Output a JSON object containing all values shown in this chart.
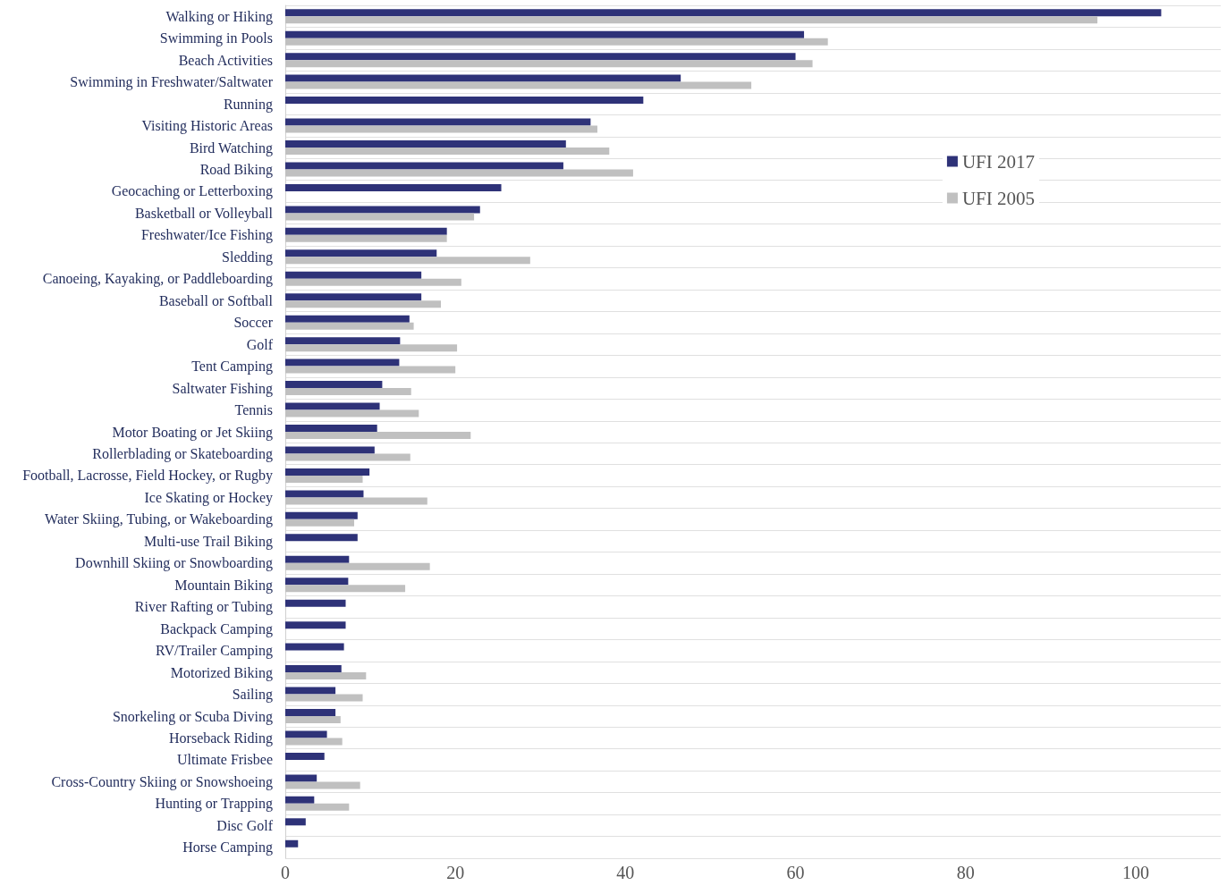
{
  "chart_data": {
    "type": "bar",
    "orientation": "horizontal",
    "categories": [
      "Walking or Hiking",
      "Swimming in Pools",
      "Beach Activities",
      "Swimming in Freshwater/Saltwater",
      "Running",
      "Visiting Historic Areas",
      "Bird Watching",
      "Road Biking",
      "Geocaching or Letterboxing",
      "Basketball or Volleyball",
      "Freshwater/Ice Fishing",
      "Sledding",
      "Canoeing, Kayaking, or Paddleboarding",
      "Baseball or Softball",
      "Soccer",
      "Golf",
      "Tent Camping",
      "Saltwater Fishing",
      "Tennis",
      "Motor Boating or Jet Skiing",
      "Rollerblading or Skateboarding",
      "Football, Lacrosse, Field Hockey, or Rugby",
      "Ice Skating or Hockey",
      "Water Skiing, Tubing, or Wakeboarding",
      "Multi-use Trail Biking",
      "Downhill Skiing or Snowboarding",
      "Mountain Biking",
      "River Rafting or Tubing",
      "Backpack Camping",
      "RV/Trailer Camping",
      "Motorized Biking",
      "Sailing",
      "Snorkeling or Scuba Diving",
      "Horseback Riding",
      "Ultimate Frisbee",
      "Cross-Country Skiing or Snowshoeing",
      "Hunting or Trapping",
      "Disc Golf",
      "Horse Camping"
    ],
    "series": [
      {
        "name": "UFI 2017",
        "color": "#2e3278",
        "values": [
          103,
          61,
          60,
          46.5,
          42.1,
          35.9,
          33,
          32.7,
          25.4,
          22.9,
          19,
          17.8,
          16,
          16,
          14.6,
          13.5,
          13.4,
          11.4,
          11.1,
          10.8,
          10.5,
          9.9,
          9.2,
          8.5,
          8.5,
          7.5,
          7.4,
          7.1,
          7.1,
          6.9,
          6.6,
          5.9,
          5.9,
          4.9,
          4.6,
          3.7,
          3.4,
          2.4,
          1.5
        ]
      },
      {
        "name": "UFI 2005",
        "color": "#c0c0c0",
        "values": [
          95.5,
          63.8,
          62,
          54.8,
          null,
          36.7,
          38.1,
          40.9,
          null,
          22.2,
          19,
          28.8,
          20.7,
          18.3,
          15.1,
          20.2,
          20,
          14.8,
          15.7,
          21.8,
          14.7,
          9.1,
          16.7,
          8.1,
          null,
          17,
          14.1,
          null,
          null,
          null,
          9.5,
          9.1,
          6.5,
          6.7,
          null,
          8.8,
          7.5,
          null,
          null
        ]
      }
    ],
    "xlim": [
      0,
      110
    ],
    "xticks": [
      0,
      20,
      40,
      60,
      80,
      100
    ],
    "grid": "y",
    "legend": "top right"
  }
}
